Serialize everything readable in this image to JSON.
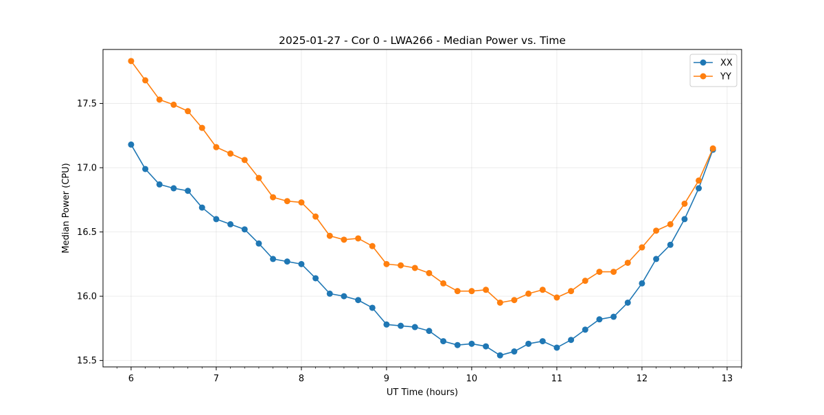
{
  "chart_data": {
    "type": "line",
    "title": "2025-01-27 - Cor 0 - LWA266 - Median Power vs. Time",
    "xlabel": "UT Time (hours)",
    "ylabel": "Median Power (CPU)",
    "xlim": [
      5.67,
      13.17
    ],
    "ylim": [
      15.45,
      17.92
    ],
    "grid": true,
    "legend_position": "top-right",
    "xticks": [
      6,
      7,
      8,
      9,
      10,
      11,
      12,
      13
    ],
    "xtick_labels": [
      "6",
      "7",
      "8",
      "9",
      "10",
      "11",
      "12",
      "13"
    ],
    "yticks": [
      15.5,
      16.0,
      16.5,
      17.0,
      17.5
    ],
    "ytick_labels": [
      "15.5",
      "16.0",
      "16.5",
      "17.0",
      "17.5"
    ],
    "x": [
      6.0,
      6.1667,
      6.3333,
      6.5,
      6.6667,
      6.8333,
      7.0,
      7.1667,
      7.3333,
      7.5,
      7.6667,
      7.8333,
      8.0,
      8.1667,
      8.3333,
      8.5,
      8.6667,
      8.8333,
      9.0,
      9.1667,
      9.3333,
      9.5,
      9.6667,
      9.8333,
      10.0,
      10.1667,
      10.3333,
      10.5,
      10.6667,
      10.8333,
      11.0,
      11.1667,
      11.3333,
      11.5,
      11.6667,
      11.8333,
      12.0,
      12.1667,
      12.3333,
      12.5,
      12.6667,
      12.8333
    ],
    "series": [
      {
        "name": "XX",
        "color": "#1f77b4",
        "values": [
          17.18,
          16.99,
          16.87,
          16.84,
          16.82,
          16.69,
          16.6,
          16.56,
          16.52,
          16.41,
          16.29,
          16.27,
          16.25,
          16.14,
          16.02,
          16.0,
          15.97,
          15.91,
          15.78,
          15.77,
          15.76,
          15.73,
          15.65,
          15.62,
          15.63,
          15.61,
          15.54,
          15.57,
          15.63,
          15.65,
          15.6,
          15.66,
          15.74,
          15.82,
          15.84,
          15.95,
          16.1,
          16.29,
          16.4,
          16.6,
          16.84,
          17.14
        ]
      },
      {
        "name": "YY",
        "color": "#ff7f0e",
        "values": [
          17.83,
          17.68,
          17.53,
          17.49,
          17.44,
          17.31,
          17.16,
          17.11,
          17.06,
          16.92,
          16.77,
          16.74,
          16.73,
          16.62,
          16.47,
          16.44,
          16.45,
          16.39,
          16.25,
          16.24,
          16.22,
          16.18,
          16.1,
          16.04,
          16.04,
          16.05,
          15.95,
          15.97,
          16.02,
          16.05,
          15.99,
          16.04,
          16.12,
          16.19,
          16.19,
          16.26,
          16.38,
          16.51,
          16.56,
          16.72,
          16.9,
          17.15
        ]
      }
    ]
  }
}
